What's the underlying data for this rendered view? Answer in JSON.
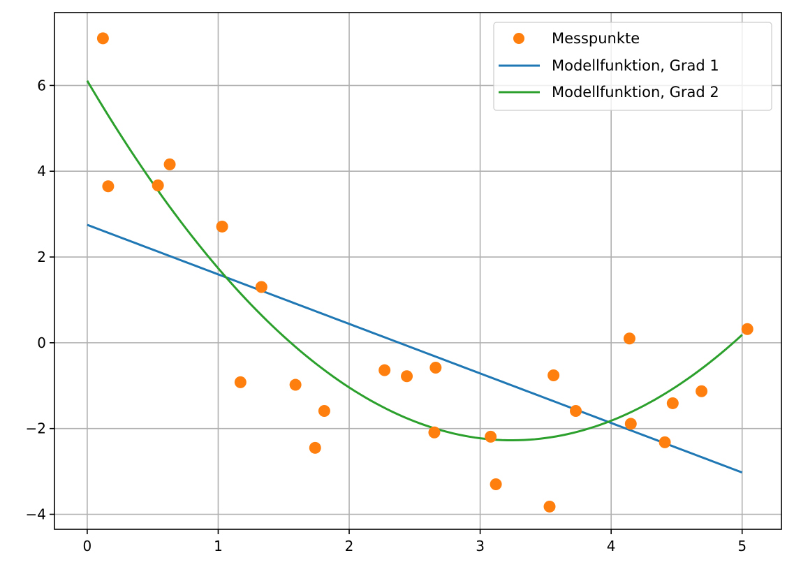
{
  "chart_data": {
    "type": "scatter",
    "title": "",
    "xlabel": "",
    "ylabel": "",
    "xlim": [
      -0.25,
      5.3
    ],
    "ylim": [
      -4.35,
      7.7
    ],
    "xticks": [
      0,
      1,
      2,
      3,
      4,
      5
    ],
    "xtick_labels": [
      "0",
      "1",
      "2",
      "3",
      "4",
      "5"
    ],
    "yticks": [
      -4,
      -2,
      0,
      2,
      4,
      6
    ],
    "ytick_labels": [
      "−4",
      "−2",
      "0",
      "2",
      "4",
      "6"
    ],
    "grid": true,
    "legend_position": "top-right",
    "series": [
      {
        "name": "Messpunkte",
        "kind": "scatter",
        "color": "#ff7f0e",
        "x": [
          0.12,
          0.16,
          0.54,
          0.63,
          1.03,
          1.17,
          1.33,
          1.59,
          1.74,
          1.81,
          2.27,
          2.44,
          2.65,
          2.66,
          3.08,
          3.12,
          3.53,
          3.56,
          3.73,
          4.14,
          4.15,
          4.41,
          4.47,
          4.69,
          5.04
        ],
        "y": [
          7.1,
          3.65,
          3.67,
          4.16,
          2.71,
          -0.92,
          1.3,
          -0.98,
          -2.45,
          -1.59,
          -0.64,
          -0.78,
          -2.09,
          -0.58,
          -2.19,
          -3.3,
          -3.82,
          -0.76,
          -1.59,
          0.1,
          -1.89,
          -2.32,
          -1.41,
          -1.13,
          0.32
        ]
      },
      {
        "name": "Modellfunktion, Grad 1",
        "kind": "line",
        "color": "#1f77b4",
        "model": {
          "degree": 1,
          "coefficients": [
            2.75,
            -1.155
          ]
        },
        "x_range": [
          0,
          5
        ]
      },
      {
        "name": "Modellfunktion, Grad 2",
        "kind": "line",
        "color": "#2ca02c",
        "model": {
          "degree": 2,
          "coefficients": [
            6.11,
            -5.17,
            0.797
          ]
        },
        "x_range": [
          0,
          5
        ]
      }
    ]
  }
}
